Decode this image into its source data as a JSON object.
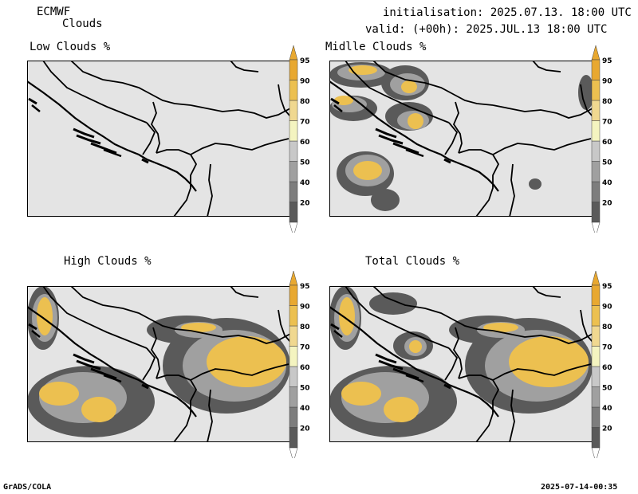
{
  "header": {
    "model": "ECMWF",
    "product": "Clouds",
    "init": "initialisation: 2025.07.13. 18:00 UTC",
    "valid": "valid: (+00h): 2025.JUL.13 18:00 UTC"
  },
  "panels": [
    {
      "title": "Low Clouds %"
    },
    {
      "title": "Midlle Clouds %"
    },
    {
      "title": "High Clouds %"
    },
    {
      "title": "Total Clouds %"
    }
  ],
  "colorbar": {
    "levels": [
      "20",
      "40",
      "50",
      "60",
      "70",
      "80",
      "90",
      "95"
    ],
    "colors": [
      "#5a5a5a",
      "#7d7d7d",
      "#a0a0a0",
      "#c8c8c8",
      "#f4f4c0",
      "#f0d890",
      "#ecc050",
      "#e8a830"
    ]
  },
  "map": {
    "background": "#e4e4e4",
    "border_color": "#000000"
  },
  "footer": {
    "left": "GrADS/COLA",
    "right": "2025-07-14-00:35"
  }
}
